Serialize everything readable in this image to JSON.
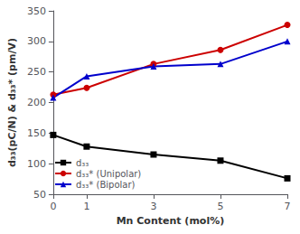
{
  "chart_data": {
    "type": "line",
    "xlabel": "Mn Content (mol%)",
    "ylabel": "d₃₃(pC/N) & d₃₃* (pm/V)",
    "x": [
      0,
      1,
      3,
      5,
      7
    ],
    "series": [
      {
        "name": "d₃₃",
        "color": "#000000",
        "marker": "square",
        "values": [
          147,
          128,
          115,
          105,
          76
        ]
      },
      {
        "name": "d₃₃* (Unipolar)",
        "color": "#cc0000",
        "marker": "circle",
        "values": [
          213,
          224,
          263,
          286,
          327
        ]
      },
      {
        "name": "d₃₃* (Bipolar)",
        "color": "#0000cc",
        "marker": "triangle",
        "values": [
          208,
          243,
          259,
          263,
          300
        ]
      }
    ],
    "xlim": [
      0,
      7
    ],
    "xticks": [
      0,
      1,
      3,
      5,
      7
    ],
    "ylim": [
      50,
      350
    ],
    "yticks": [
      50,
      100,
      150,
      200,
      250,
      300,
      350
    ],
    "grid": false,
    "legend": "lower left"
  }
}
